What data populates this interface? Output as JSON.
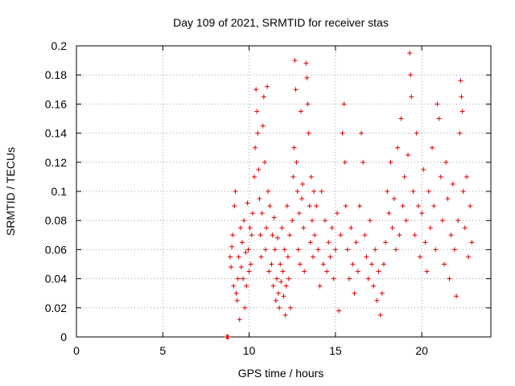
{
  "chart_data": {
    "type": "scatter",
    "title": "Day 109 of 2021, SRMTID for receiver stas",
    "xlabel": "GPS time / hours",
    "ylabel": "SRMTID / TECUs",
    "xlim": [
      0,
      24
    ],
    "ylim": [
      0,
      0.2
    ],
    "xticks": [
      "0",
      "5",
      "10",
      "15",
      "20"
    ],
    "yticks": [
      "0",
      "0.02",
      "0.04",
      "0.06",
      "0.08",
      "0.1",
      "0.12",
      "0.14",
      "0.16",
      "0.18",
      "0.2"
    ],
    "grid": true,
    "marker": "+",
    "color": "#e00000",
    "points": [
      [
        8.7,
        0.0
      ],
      [
        8.75,
        0.0
      ],
      [
        8.8,
        0.0
      ],
      [
        8.9,
        0.055
      ],
      [
        8.95,
        0.048
      ],
      [
        9.0,
        0.062
      ],
      [
        9.05,
        0.07
      ],
      [
        9.1,
        0.035
      ],
      [
        9.15,
        0.09
      ],
      [
        9.2,
        0.1
      ],
      [
        9.25,
        0.03
      ],
      [
        9.3,
        0.025
      ],
      [
        9.35,
        0.04
      ],
      [
        9.4,
        0.055
      ],
      [
        9.45,
        0.012
      ],
      [
        9.5,
        0.075
      ],
      [
        9.55,
        0.048
      ],
      [
        9.6,
        0.065
      ],
      [
        9.65,
        0.04
      ],
      [
        9.7,
        0.08
      ],
      [
        9.75,
        0.02
      ],
      [
        9.8,
        0.058
      ],
      [
        9.85,
        0.035
      ],
      [
        9.9,
        0.092
      ],
      [
        9.95,
        0.06
      ],
      [
        10.0,
        0.045
      ],
      [
        10.05,
        0.075
      ],
      [
        10.1,
        0.05
      ],
      [
        10.15,
        0.07
      ],
      [
        10.2,
        0.085
      ],
      [
        10.3,
        0.11
      ],
      [
        10.35,
        0.13
      ],
      [
        10.4,
        0.17
      ],
      [
        10.45,
        0.155
      ],
      [
        10.5,
        0.14
      ],
      [
        10.55,
        0.115
      ],
      [
        10.6,
        0.095
      ],
      [
        10.65,
        0.07
      ],
      [
        10.7,
        0.055
      ],
      [
        10.75,
        0.085
      ],
      [
        10.8,
        0.145
      ],
      [
        10.85,
        0.165
      ],
      [
        10.9,
        0.12
      ],
      [
        10.95,
        0.06
      ],
      [
        11.0,
        0.075
      ],
      [
        11.05,
        0.172
      ],
      [
        11.1,
        0.1
      ],
      [
        11.15,
        0.045
      ],
      [
        11.2,
        0.09
      ],
      [
        11.3,
        0.05
      ],
      [
        11.35,
        0.07
      ],
      [
        11.4,
        0.035
      ],
      [
        11.45,
        0.082
      ],
      [
        11.5,
        0.06
      ],
      [
        11.55,
        0.025
      ],
      [
        11.6,
        0.04
      ],
      [
        11.65,
        0.068
      ],
      [
        11.7,
        0.03
      ],
      [
        11.75,
        0.02
      ],
      [
        11.8,
        0.05
      ],
      [
        11.85,
        0.038
      ],
      [
        11.9,
        0.075
      ],
      [
        11.95,
        0.045
      ],
      [
        12.0,
        0.028
      ],
      [
        12.05,
        0.06
      ],
      [
        12.1,
        0.015
      ],
      [
        12.15,
        0.035
      ],
      [
        12.2,
        0.09
      ],
      [
        12.25,
        0.055
      ],
      [
        12.3,
        0.04
      ],
      [
        12.35,
        0.07
      ],
      [
        12.4,
        0.02
      ],
      [
        12.5,
        0.08
      ],
      [
        12.55,
        0.11
      ],
      [
        12.6,
        0.13
      ],
      [
        12.65,
        0.19
      ],
      [
        12.7,
        0.17
      ],
      [
        12.75,
        0.12
      ],
      [
        12.8,
        0.1
      ],
      [
        12.85,
        0.06
      ],
      [
        12.9,
        0.085
      ],
      [
        12.95,
        0.05
      ],
      [
        13.0,
        0.155
      ],
      [
        13.05,
        0.095
      ],
      [
        13.1,
        0.105
      ],
      [
        13.15,
        0.075
      ],
      [
        13.2,
        0.045
      ],
      [
        13.3,
        0.188
      ],
      [
        13.35,
        0.178
      ],
      [
        13.4,
        0.16
      ],
      [
        13.45,
        0.14
      ],
      [
        13.5,
        0.09
      ],
      [
        13.55,
        0.065
      ],
      [
        13.6,
        0.11
      ],
      [
        13.65,
        0.08
      ],
      [
        13.7,
        0.055
      ],
      [
        13.75,
        0.1
      ],
      [
        13.8,
        0.07
      ],
      [
        13.9,
        0.09
      ],
      [
        14.0,
        0.06
      ],
      [
        14.1,
        0.035
      ],
      [
        14.2,
        0.1
      ],
      [
        14.3,
        0.05
      ],
      [
        14.4,
        0.08
      ],
      [
        14.5,
        0.045
      ],
      [
        14.6,
        0.065
      ],
      [
        14.7,
        0.055
      ],
      [
        14.8,
        0.075
      ],
      [
        14.9,
        0.04
      ],
      [
        15.0,
        0.06
      ],
      [
        15.1,
        0.085
      ],
      [
        15.2,
        0.018
      ],
      [
        15.3,
        0.07
      ],
      [
        15.4,
        0.14
      ],
      [
        15.5,
        0.16
      ],
      [
        15.55,
        0.12
      ],
      [
        15.6,
        0.09
      ],
      [
        15.7,
        0.06
      ],
      [
        15.8,
        0.04
      ],
      [
        15.9,
        0.075
      ],
      [
        16.0,
        0.05
      ],
      [
        16.1,
        0.03
      ],
      [
        16.2,
        0.065
      ],
      [
        16.3,
        0.045
      ],
      [
        16.4,
        0.09
      ],
      [
        16.5,
        0.14
      ],
      [
        16.6,
        0.12
      ],
      [
        16.7,
        0.07
      ],
      [
        16.8,
        0.055
      ],
      [
        16.9,
        0.04
      ],
      [
        17.0,
        0.08
      ],
      [
        17.1,
        0.05
      ],
      [
        17.2,
        0.035
      ],
      [
        17.3,
        0.06
      ],
      [
        17.4,
        0.025
      ],
      [
        17.5,
        0.045
      ],
      [
        17.6,
        0.015
      ],
      [
        17.7,
        0.03
      ],
      [
        17.8,
        0.05
      ],
      [
        17.9,
        0.065
      ],
      [
        18.0,
        0.1
      ],
      [
        18.1,
        0.085
      ],
      [
        18.2,
        0.12
      ],
      [
        18.3,
        0.075
      ],
      [
        18.4,
        0.095
      ],
      [
        18.5,
        0.06
      ],
      [
        18.6,
        0.13
      ],
      [
        18.7,
        0.07
      ],
      [
        18.8,
        0.15
      ],
      [
        18.9,
        0.09
      ],
      [
        19.0,
        0.11
      ],
      [
        19.1,
        0.08
      ],
      [
        19.2,
        0.125
      ],
      [
        19.3,
        0.195
      ],
      [
        19.35,
        0.18
      ],
      [
        19.4,
        0.165
      ],
      [
        19.5,
        0.1
      ],
      [
        19.6,
        0.07
      ],
      [
        19.7,
        0.14
      ],
      [
        19.8,
        0.09
      ],
      [
        19.9,
        0.055
      ],
      [
        20.0,
        0.085
      ],
      [
        20.1,
        0.115
      ],
      [
        20.2,
        0.065
      ],
      [
        20.3,
        0.045
      ],
      [
        20.4,
        0.1
      ],
      [
        20.5,
        0.075
      ],
      [
        20.6,
        0.13
      ],
      [
        20.7,
        0.09
      ],
      [
        20.8,
        0.06
      ],
      [
        20.9,
        0.16
      ],
      [
        21.0,
        0.15
      ],
      [
        21.1,
        0.11
      ],
      [
        21.2,
        0.08
      ],
      [
        21.3,
        0.05
      ],
      [
        21.4,
        0.12
      ],
      [
        21.5,
        0.095
      ],
      [
        21.6,
        0.04
      ],
      [
        21.7,
        0.07
      ],
      [
        21.8,
        0.105
      ],
      [
        21.9,
        0.06
      ],
      [
        22.0,
        0.028
      ],
      [
        22.1,
        0.08
      ],
      [
        22.2,
        0.14
      ],
      [
        22.25,
        0.176
      ],
      [
        22.3,
        0.165
      ],
      [
        22.35,
        0.155
      ],
      [
        22.4,
        0.1
      ],
      [
        22.5,
        0.075
      ],
      [
        22.6,
        0.11
      ],
      [
        22.7,
        0.055
      ],
      [
        22.8,
        0.09
      ],
      [
        22.9,
        0.065
      ]
    ]
  }
}
